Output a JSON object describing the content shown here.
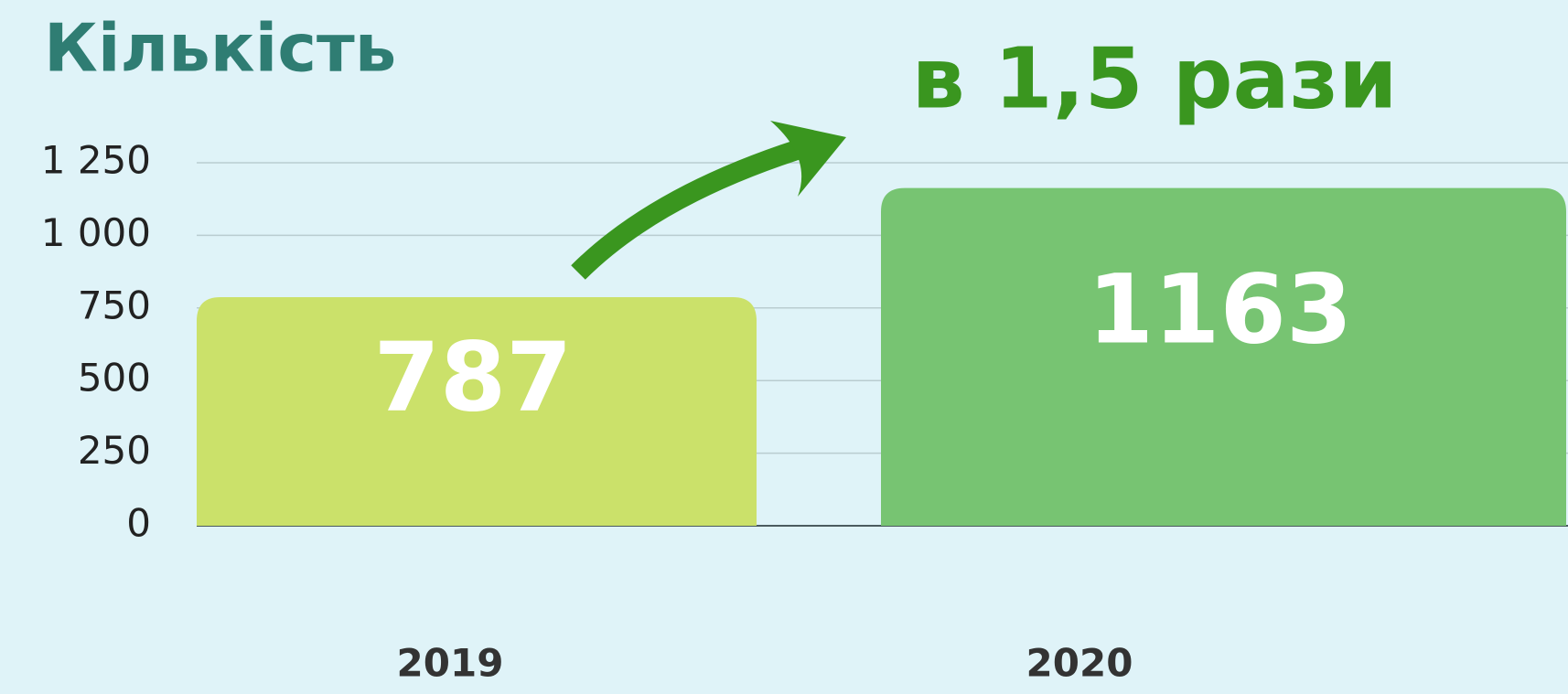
{
  "chart_data": {
    "type": "bar",
    "title": "Кількість",
    "annotation": "в 1,5 рази",
    "categories": [
      "2019",
      "2020"
    ],
    "values": [
      787,
      1163
    ],
    "colors": [
      "#cbe16a",
      "#77c472"
    ],
    "ylim": [
      0,
      1250
    ],
    "yticks": [
      0,
      250,
      500,
      750,
      {
        "value": 1000,
        "label": "1 000"
      },
      {
        "value": 1250,
        "label": "1 250"
      }
    ],
    "grid": true
  }
}
